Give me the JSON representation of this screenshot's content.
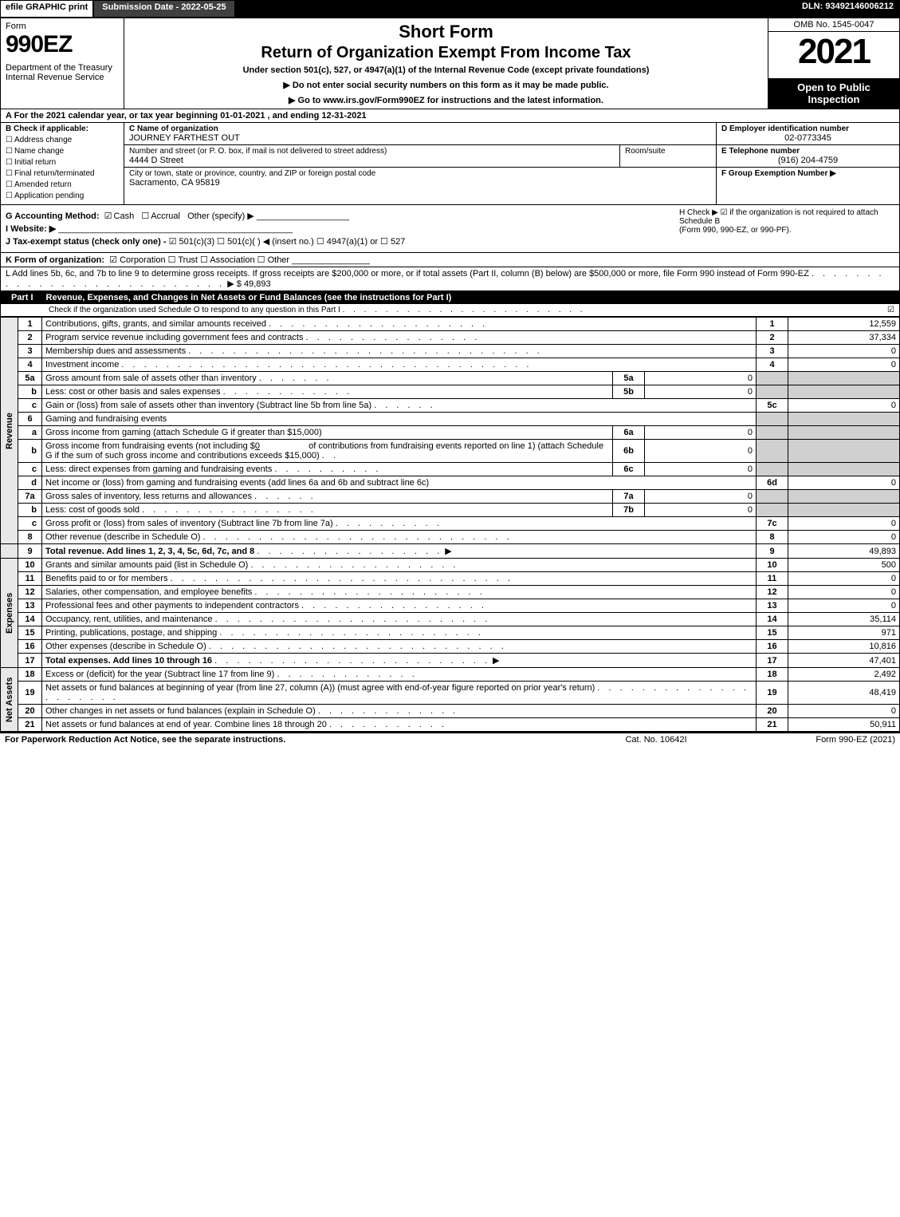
{
  "top_bar": {
    "efile": "efile GRAPHIC print",
    "submission_date": "Submission Date - 2022-05-25",
    "dln": "DLN: 93492146006212"
  },
  "header": {
    "form_word": "Form",
    "form_number": "990EZ",
    "department": "Department of the Treasury\nInternal Revenue Service",
    "short_form": "Short Form",
    "return_title": "Return of Organization Exempt From Income Tax",
    "under_section": "Under section 501(c), 527, or 4947(a)(1) of the Internal Revenue Code (except private foundations)",
    "do_not_enter": "▶ Do not enter social security numbers on this form as it may be made public.",
    "go_to": "▶ Go to www.irs.gov/Form990EZ for instructions and the latest information.",
    "omb": "OMB No. 1545-0047",
    "year": "2021",
    "open_to": "Open to Public Inspection"
  },
  "line_a": "A  For the 2021 calendar year, or tax year beginning 01-01-2021 , and ending 12-31-2021",
  "section_b": {
    "label": "B  Check if applicable:",
    "items": [
      "Address change",
      "Name change",
      "Initial return",
      "Final return/terminated",
      "Amended return",
      "Application pending"
    ]
  },
  "section_c": {
    "label": "C Name of organization",
    "org_name": "JOURNEY FARTHEST OUT",
    "addr_label": "Number and street (or P. O. box, if mail is not delivered to street address)",
    "address": "4444 D Street",
    "room_label": "Room/suite",
    "city_label": "City or town, state or province, country, and ZIP or foreign postal code",
    "city": "Sacramento, CA  95819"
  },
  "section_d": {
    "label": "D Employer identification number",
    "value": "02-0773345"
  },
  "section_e": {
    "label": "E Telephone number",
    "value": "(916) 204-4759"
  },
  "section_f": {
    "label": "F Group Exemption Number  ▶",
    "value": ""
  },
  "section_g": {
    "label": "G Accounting Method:",
    "cash": "Cash",
    "accrual": "Accrual",
    "other": "Other (specify) ▶"
  },
  "section_h": {
    "text1": "H  Check ▶ ☑ if the organization is not required to attach Schedule B",
    "text2": "(Form 990, 990-EZ, or 990-PF)."
  },
  "section_i": {
    "label": "I Website: ▶"
  },
  "section_j": {
    "label": "J Tax-exempt status (check only one) -",
    "opts": "☑ 501(c)(3)  ☐ 501(c)(  ) ◀ (insert no.)  ☐ 4947(a)(1) or  ☐ 527"
  },
  "section_k": {
    "label": "K Form of organization:",
    "opts": "☑ Corporation  ☐ Trust  ☐ Association  ☐ Other"
  },
  "section_l": {
    "text": "L Add lines 5b, 6c, and 7b to line 9 to determine gross receipts. If gross receipts are $200,000 or more, or if total assets (Part II, column (B) below) are $500,000 or more, file Form 990 instead of Form 990-EZ",
    "amount": "▶ $ 49,893"
  },
  "part1": {
    "label": "Part I",
    "title": "Revenue, Expenses, and Changes in Net Assets or Fund Balances (see the instructions for Part I)",
    "subtitle": "Check if the organization used Schedule O to respond to any question in this Part I",
    "check": "☑"
  },
  "revenue_tab": "Revenue",
  "expenses_tab": "Expenses",
  "netassets_tab": "Net Assets",
  "lines": {
    "l1": {
      "num": "1",
      "desc": "Contributions, gifts, grants, and similar amounts received",
      "rnum": "1",
      "rval": "12,559"
    },
    "l2": {
      "num": "2",
      "desc": "Program service revenue including government fees and contracts",
      "rnum": "2",
      "rval": "37,334"
    },
    "l3": {
      "num": "3",
      "desc": "Membership dues and assessments",
      "rnum": "3",
      "rval": "0"
    },
    "l4": {
      "num": "4",
      "desc": "Investment income",
      "rnum": "4",
      "rval": "0"
    },
    "l5a": {
      "num": "5a",
      "desc": "Gross amount from sale of assets other than inventory",
      "innum": "5a",
      "inval": "0"
    },
    "l5b": {
      "num": "b",
      "desc": "Less: cost or other basis and sales expenses",
      "innum": "5b",
      "inval": "0"
    },
    "l5c": {
      "num": "c",
      "desc": "Gain or (loss) from sale of assets other than inventory (Subtract line 5b from line 5a)",
      "rnum": "5c",
      "rval": "0"
    },
    "l6": {
      "num": "6",
      "desc": "Gaming and fundraising events"
    },
    "l6a": {
      "num": "a",
      "desc": "Gross income from gaming (attach Schedule G if greater than $15,000)",
      "innum": "6a",
      "inval": "0"
    },
    "l6b": {
      "num": "b",
      "desc1": "Gross income from fundraising events (not including $",
      "desc_amt": "0",
      "desc2": "of contributions from fundraising events reported on line 1) (attach Schedule G if the sum of such gross income and contributions exceeds $15,000)",
      "innum": "6b",
      "inval": "0"
    },
    "l6c": {
      "num": "c",
      "desc": "Less: direct expenses from gaming and fundraising events",
      "innum": "6c",
      "inval": "0"
    },
    "l6d": {
      "num": "d",
      "desc": "Net income or (loss) from gaming and fundraising events (add lines 6a and 6b and subtract line 6c)",
      "rnum": "6d",
      "rval": "0"
    },
    "l7a": {
      "num": "7a",
      "desc": "Gross sales of inventory, less returns and allowances",
      "innum": "7a",
      "inval": "0"
    },
    "l7b": {
      "num": "b",
      "desc": "Less: cost of goods sold",
      "innum": "7b",
      "inval": "0"
    },
    "l7c": {
      "num": "c",
      "desc": "Gross profit or (loss) from sales of inventory (Subtract line 7b from line 7a)",
      "rnum": "7c",
      "rval": "0"
    },
    "l8": {
      "num": "8",
      "desc": "Other revenue (describe in Schedule O)",
      "rnum": "8",
      "rval": "0"
    },
    "l9": {
      "num": "9",
      "desc": "Total revenue. Add lines 1, 2, 3, 4, 5c, 6d, 7c, and 8",
      "rnum": "9",
      "rval": "49,893"
    },
    "l10": {
      "num": "10",
      "desc": "Grants and similar amounts paid (list in Schedule O)",
      "rnum": "10",
      "rval": "500"
    },
    "l11": {
      "num": "11",
      "desc": "Benefits paid to or for members",
      "rnum": "11",
      "rval": "0"
    },
    "l12": {
      "num": "12",
      "desc": "Salaries, other compensation, and employee benefits",
      "rnum": "12",
      "rval": "0"
    },
    "l13": {
      "num": "13",
      "desc": "Professional fees and other payments to independent contractors",
      "rnum": "13",
      "rval": "0"
    },
    "l14": {
      "num": "14",
      "desc": "Occupancy, rent, utilities, and maintenance",
      "rnum": "14",
      "rval": "35,114"
    },
    "l15": {
      "num": "15",
      "desc": "Printing, publications, postage, and shipping",
      "rnum": "15",
      "rval": "971"
    },
    "l16": {
      "num": "16",
      "desc": "Other expenses (describe in Schedule O)",
      "rnum": "16",
      "rval": "10,816"
    },
    "l17": {
      "num": "17",
      "desc": "Total expenses. Add lines 10 through 16",
      "rnum": "17",
      "rval": "47,401"
    },
    "l18": {
      "num": "18",
      "desc": "Excess or (deficit) for the year (Subtract line 17 from line 9)",
      "rnum": "18",
      "rval": "2,492"
    },
    "l19": {
      "num": "19",
      "desc": "Net assets or fund balances at beginning of year (from line 27, column (A)) (must agree with end-of-year figure reported on prior year's return)",
      "rnum": "19",
      "rval": "48,419"
    },
    "l20": {
      "num": "20",
      "desc": "Other changes in net assets or fund balances (explain in Schedule O)",
      "rnum": "20",
      "rval": "0"
    },
    "l21": {
      "num": "21",
      "desc": "Net assets or fund balances at end of year. Combine lines 18 through 20",
      "rnum": "21",
      "rval": "50,911"
    }
  },
  "footer": {
    "left": "For Paperwork Reduction Act Notice, see the separate instructions.",
    "center": "Cat. No. 10642I",
    "right": "Form 990-EZ (2021)"
  }
}
